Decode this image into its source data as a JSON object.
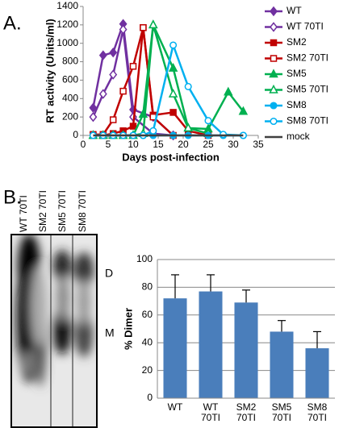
{
  "panels": [
    "A.",
    "B."
  ],
  "gel": {
    "lanes": [
      "WT 70TI",
      "SM2 70TI",
      "SM5 70TI",
      "SM8 70TI"
    ],
    "bands": [
      "D",
      "M"
    ]
  },
  "chart_data": [
    {
      "type": "line",
      "xlabel": "Days post-infection",
      "ylabel": "RT activity (Units/ml)",
      "xlim": [
        0,
        35
      ],
      "xticks": [
        0,
        5,
        10,
        15,
        20,
        25,
        30,
        35
      ],
      "ylim": [
        0,
        1400
      ],
      "yticks": [
        0,
        200,
        400,
        600,
        800,
        1000,
        1200,
        1400
      ],
      "grid": false,
      "legend": "right",
      "series": [
        {
          "name": "WT",
          "color": "#7030a0",
          "marker": "diamond",
          "filled": true,
          "x": [
            2,
            4,
            6,
            8,
            10,
            14,
            18
          ],
          "values": [
            300,
            870,
            900,
            1210,
            280,
            200,
            0
          ]
        },
        {
          "name": "WT 70TI",
          "color": "#7030a0",
          "marker": "diamond",
          "filled": false,
          "x": [
            2,
            4,
            6,
            8,
            10,
            14,
            18
          ],
          "values": [
            200,
            450,
            660,
            1150,
            200,
            20,
            0
          ]
        },
        {
          "name": "SM2",
          "color": "#c00000",
          "marker": "square",
          "filled": true,
          "x": [
            2,
            4,
            6,
            8,
            10,
            12,
            14,
            18,
            21,
            25
          ],
          "values": [
            0,
            0,
            20,
            50,
            100,
            1170,
            220,
            250,
            50,
            0
          ]
        },
        {
          "name": "SM2 70TI",
          "color": "#c00000",
          "marker": "square",
          "filled": false,
          "x": [
            2,
            4,
            6,
            8,
            10,
            12,
            14,
            18
          ],
          "values": [
            10,
            10,
            170,
            480,
            750,
            1170,
            200,
            0
          ]
        },
        {
          "name": "SM5",
          "color": "#00b050",
          "marker": "triangle",
          "filled": true,
          "x": [
            2,
            4,
            6,
            8,
            10,
            12,
            14,
            18,
            21,
            25,
            29,
            32
          ],
          "values": [
            0,
            0,
            0,
            0,
            0,
            230,
            1200,
            730,
            80,
            70,
            470,
            260
          ]
        },
        {
          "name": "SM5 70TI",
          "color": "#00b050",
          "marker": "triangle",
          "filled": false,
          "x": [
            2,
            4,
            6,
            8,
            10,
            12,
            14,
            18,
            21,
            25
          ],
          "values": [
            0,
            0,
            0,
            0,
            0,
            20,
            1200,
            450,
            80,
            20
          ]
        },
        {
          "name": "SM8",
          "color": "#00b0f0",
          "marker": "circle",
          "filled": true,
          "x": [
            2,
            4,
            6,
            8,
            10,
            12,
            14,
            18,
            21,
            25,
            28,
            32
          ],
          "values": [
            0,
            0,
            0,
            0,
            0,
            0,
            0,
            0,
            0,
            0,
            0,
            0
          ]
        },
        {
          "name": "SM8 70TI",
          "color": "#00b0f0",
          "marker": "circle",
          "filled": false,
          "x": [
            2,
            4,
            6,
            8,
            10,
            12,
            14,
            18,
            21,
            25,
            28,
            32
          ],
          "values": [
            0,
            0,
            0,
            0,
            0,
            0,
            50,
            980,
            530,
            160,
            10,
            0
          ]
        },
        {
          "name": "mock",
          "color": "#404040",
          "marker": "none",
          "filled": true,
          "x": [
            2,
            4,
            6,
            8,
            10,
            12,
            14,
            18,
            21,
            25,
            28,
            32
          ],
          "values": [
            0,
            0,
            0,
            0,
            0,
            0,
            0,
            0,
            0,
            0,
            0,
            0
          ]
        }
      ]
    },
    {
      "type": "bar",
      "ylabel": "% Dimer",
      "categories": [
        "WT",
        "WT 70TI",
        "SM2 70TI",
        "SM5 70TI",
        "SM8 70TI"
      ],
      "values": [
        72,
        77,
        69,
        48,
        36
      ],
      "errors": [
        17,
        12,
        9,
        8,
        12
      ],
      "color": "#4a7ebb",
      "ylim": [
        0,
        100
      ],
      "yticks": [
        0,
        20,
        40,
        60,
        80,
        100
      ],
      "grid": true
    }
  ]
}
